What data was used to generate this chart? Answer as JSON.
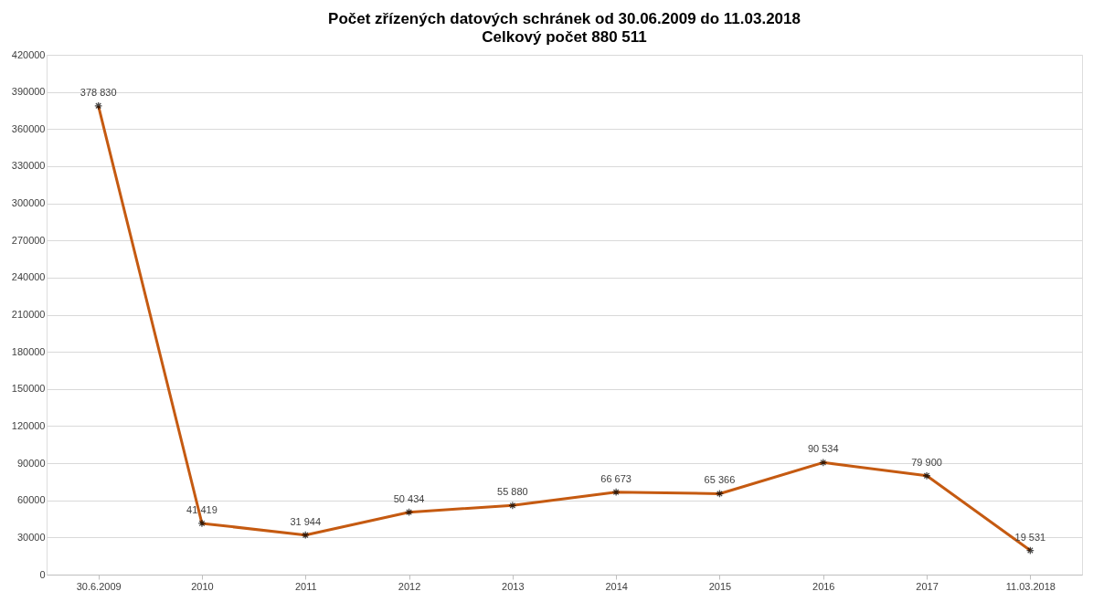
{
  "chart_data": {
    "type": "line",
    "title": "Počet zřízených datových schránek od 30.06.2009 do 11.03.2018",
    "subtitle": "Celkový počet  880 511",
    "categories": [
      "30.6.2009",
      "2010",
      "2011",
      "2012",
      "2013",
      "2014",
      "2015",
      "2016",
      "2017",
      "11.03.2018"
    ],
    "series": [
      {
        "color": "#c55a11",
        "values": [
          378830,
          41419,
          31944,
          50434,
          55880,
          66673,
          65366,
          90534,
          79900,
          19531
        ],
        "value_labels": [
          "378 830",
          "41 419",
          "31 944",
          "50 434",
          "55 880",
          "66 673",
          "65 366",
          "90 534",
          "79 900",
          "19 531"
        ]
      }
    ],
    "ylim": [
      0,
      420000
    ],
    "yticks": [
      0,
      30000,
      60000,
      90000,
      120000,
      150000,
      180000,
      210000,
      240000,
      270000,
      300000,
      330000,
      360000,
      390000,
      420000
    ],
    "grid": "y",
    "marker": "cross",
    "line_style": "solid"
  }
}
